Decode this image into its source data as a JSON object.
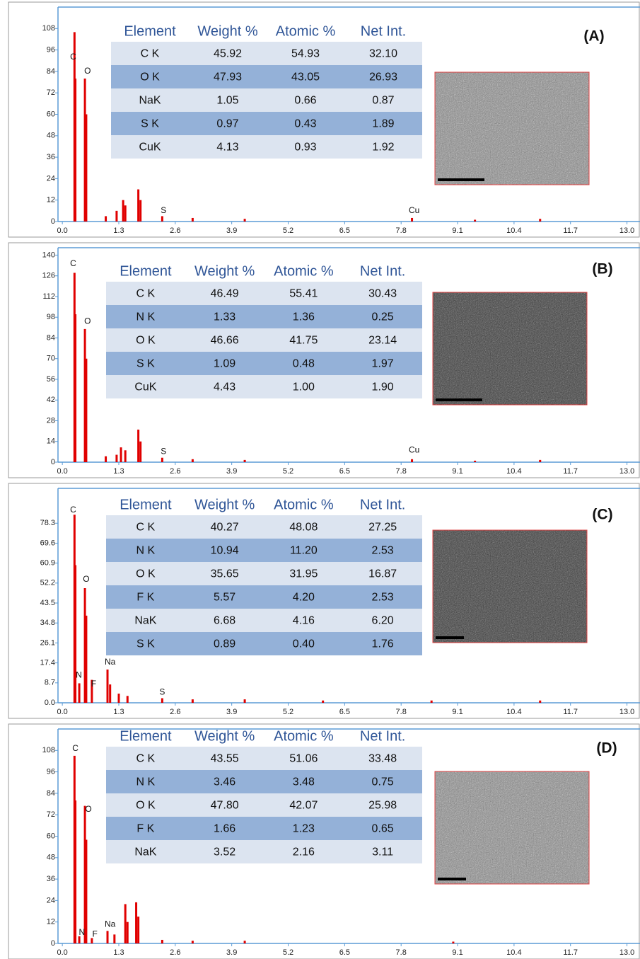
{
  "chart_data": [
    {
      "type": "spectrum",
      "label": "(A)",
      "color": "#e00000",
      "x": [
        0.28,
        0.3,
        0.52,
        0.55,
        1.0,
        1.25,
        1.4,
        1.45,
        1.75,
        1.8,
        2.3,
        3.0,
        4.2,
        8.05,
        9.5,
        11.0
      ],
      "values": [
        106,
        80,
        80,
        60,
        3,
        6,
        12,
        9,
        18,
        12,
        3,
        2,
        1.5,
        2,
        1,
        1.5
      ],
      "xlim": [
        -0.1,
        13.3
      ],
      "ylim": [
        0,
        120
      ],
      "xticks": [
        {
          "value": 0,
          "label": "0.0"
        },
        1.3,
        2.6,
        3.9,
        5.2,
        6.5,
        7.8,
        9.1,
        10.4,
        11.7,
        {
          "value": 13,
          "label": "13.0"
        }
      ],
      "yticks": [
        0,
        12,
        24,
        36,
        48,
        60,
        72,
        84,
        96,
        108
      ],
      "annotations": [
        {
          "text": "C",
          "x": 0.25,
          "y": 92
        },
        {
          "text": "O",
          "x": 0.58,
          "y": 84
        },
        {
          "text": "S",
          "x": 2.33,
          "y": 6
        },
        {
          "text": "Cu",
          "x": 8.1,
          "y": 6
        }
      ],
      "table": {
        "columns": [
          "Element",
          "Weight %",
          "Atomic %",
          "Net Int."
        ],
        "rows": [
          [
            "C K",
            "45.92",
            "54.93",
            "32.10"
          ],
          [
            "O K",
            "47.93",
            "43.05",
            "26.93"
          ],
          [
            "NaK",
            "1.05",
            "0.66",
            "0.87"
          ],
          [
            "S K",
            "0.97",
            "0.43",
            "1.89"
          ],
          [
            "CuK",
            "4.13",
            "0.93",
            "1.92"
          ]
        ]
      }
    },
    {
      "type": "spectrum",
      "label": "(B)",
      "color": "#e00000",
      "x": [
        0.28,
        0.3,
        0.52,
        0.55,
        1.0,
        1.25,
        1.35,
        1.45,
        1.75,
        1.8,
        2.3,
        3.0,
        4.2,
        8.05,
        9.5,
        11.0
      ],
      "values": [
        128,
        100,
        90,
        70,
        4,
        5,
        10,
        8,
        22,
        14,
        3,
        2,
        1.5,
        2,
        1,
        1.5
      ],
      "xlim": [
        -0.1,
        13.3
      ],
      "ylim": [
        0,
        145
      ],
      "xticks": [
        {
          "value": 0,
          "label": "0.0"
        },
        1.3,
        2.6,
        3.9,
        5.2,
        6.5,
        7.8,
        9.1,
        10.4,
        11.7,
        {
          "value": 13,
          "label": "13.0"
        }
      ],
      "yticks": [
        0,
        14,
        28,
        42,
        56,
        70,
        84,
        98,
        112,
        126,
        140
      ],
      "annotations": [
        {
          "text": "C",
          "x": 0.25,
          "y": 134
        },
        {
          "text": "O",
          "x": 0.58,
          "y": 95
        },
        {
          "text": "S",
          "x": 2.33,
          "y": 7
        },
        {
          "text": "Cu",
          "x": 8.1,
          "y": 8
        }
      ],
      "table": {
        "columns": [
          "Element",
          "Weight %",
          "Atomic %",
          "Net Int."
        ],
        "rows": [
          [
            "C K",
            "46.49",
            "55.41",
            "30.43"
          ],
          [
            "N K",
            "1.33",
            "1.36",
            "0.25"
          ],
          [
            "O K",
            "46.66",
            "41.75",
            "23.14"
          ],
          [
            "S K",
            "1.09",
            "0.48",
            "1.97"
          ],
          [
            "CuK",
            "4.43",
            "1.00",
            "1.90"
          ]
        ]
      }
    },
    {
      "type": "spectrum",
      "label": "(C)",
      "color": "#e00000",
      "x": [
        0.28,
        0.3,
        0.39,
        0.52,
        0.55,
        0.68,
        1.04,
        1.1,
        1.3,
        1.5,
        2.3,
        3.0,
        4.2,
        6.0,
        8.5,
        11.0
      ],
      "values": [
        82,
        60,
        8.5,
        50,
        38,
        10,
        14.5,
        8,
        4,
        3,
        2,
        1.5,
        1.5,
        1,
        1,
        1
      ],
      "xlim": [
        -0.1,
        13.3
      ],
      "ylim": [
        0,
        93.5
      ],
      "xticks": [
        {
          "value": 0,
          "label": "0.0"
        },
        1.3,
        2.6,
        3.9,
        5.2,
        6.5,
        7.8,
        9.1,
        10.4,
        11.7,
        {
          "value": 13,
          "label": "13.0"
        }
      ],
      "yticks": [
        {
          "value": 0,
          "label": "0.0"
        },
        8.7,
        17.4,
        26.1,
        34.8,
        43.5,
        52.2,
        60.9,
        69.6,
        78.3
      ],
      "annotations": [
        {
          "text": "C",
          "x": 0.25,
          "y": 84
        },
        {
          "text": "O",
          "x": 0.55,
          "y": 53.7
        },
        {
          "text": "N",
          "x": 0.38,
          "y": 12
        },
        {
          "text": "F",
          "x": 0.72,
          "y": 8
        },
        {
          "text": "Na",
          "x": 1.1,
          "y": 17.6
        },
        {
          "text": "S",
          "x": 2.3,
          "y": 4.5
        }
      ],
      "table": {
        "columns": [
          "Element",
          "Weight %",
          "Atomic %",
          "Net Int."
        ],
        "rows": [
          [
            "C K",
            "40.27",
            "48.08",
            "27.25"
          ],
          [
            "N K",
            "10.94",
            "11.20",
            "2.53"
          ],
          [
            "O K",
            "35.65",
            "31.95",
            "16.87"
          ],
          [
            "F K",
            "5.57",
            "4.20",
            "2.53"
          ],
          [
            "NaK",
            "6.68",
            "4.16",
            "6.20"
          ],
          [
            "S K",
            "0.89",
            "0.40",
            "1.76"
          ]
        ]
      }
    },
    {
      "type": "spectrum",
      "label": "(D)",
      "color": "#e00000",
      "x": [
        0.28,
        0.3,
        0.39,
        0.52,
        0.55,
        0.68,
        1.04,
        1.2,
        1.45,
        1.5,
        1.7,
        1.75,
        2.3,
        3.0,
        4.2,
        9.0
      ],
      "values": [
        105,
        80,
        4,
        77,
        58,
        3,
        7,
        5,
        22,
        12,
        23,
        15,
        2,
        1.5,
        1.5,
        1
      ],
      "xlim": [
        -0.1,
        13.3
      ],
      "ylim": [
        0,
        120
      ],
      "xticks": [
        {
          "value": 0,
          "label": "0.0"
        },
        1.3,
        2.6,
        3.9,
        5.2,
        6.5,
        7.8,
        9.1,
        10.4,
        11.7,
        {
          "value": 13,
          "label": "13.0"
        }
      ],
      "yticks": [
        0,
        12,
        24,
        36,
        48,
        60,
        72,
        84,
        96,
        108
      ],
      "annotations": [
        {
          "text": "C",
          "x": 0.3,
          "y": 109
        },
        {
          "text": "O",
          "x": 0.6,
          "y": 75
        },
        {
          "text": "N",
          "x": 0.45,
          "y": 6
        },
        {
          "text": "F",
          "x": 0.75,
          "y": 5
        },
        {
          "text": "Na",
          "x": 1.1,
          "y": 10.5
        }
      ],
      "table": {
        "columns": [
          "Element",
          "Weight %",
          "Atomic %",
          "Net Int."
        ],
        "rows": [
          [
            "C K",
            "43.55",
            "51.06",
            "33.48"
          ],
          [
            "N K",
            "3.46",
            "3.48",
            "0.75"
          ],
          [
            "O K",
            "47.80",
            "42.07",
            "25.98"
          ],
          [
            "F K",
            "1.66",
            "1.23",
            "0.65"
          ],
          [
            "NaK",
            "3.52",
            "2.16",
            "3.11"
          ]
        ]
      }
    }
  ]
}
